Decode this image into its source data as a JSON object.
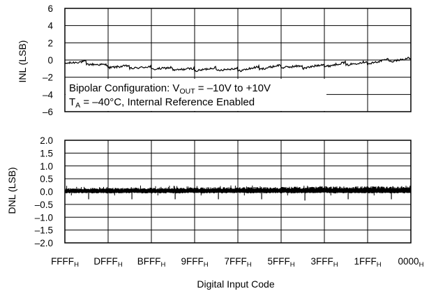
{
  "chart_data": [
    {
      "type": "line",
      "ylabel": "INL (LSB)",
      "ylim": [
        -6,
        6
      ],
      "y_ticks": [
        "6",
        "4",
        "2",
        "0",
        "–2",
        "–4",
        "–6"
      ],
      "x_categories": [
        "FFFF",
        "DFFF",
        "BFFF",
        "9FFF",
        "7FFF",
        "5FFF",
        "3FFF",
        "1FFF",
        "0000"
      ],
      "grid": true,
      "annotation": {
        "line1_pre": "Bipolar Configuration: V",
        "line1_sub": "OUT",
        "line1_post": " = –10V to +10V",
        "line2_pre": "T",
        "line2_sub": "A",
        "line2_post": " = –40°C, Internal Reference Enabled"
      },
      "series": [
        {
          "x": [
            "FFFF",
            "EFFF",
            "DFFF",
            "CFFF",
            "BFFF",
            "AFFF",
            "9FFF",
            "8FFF",
            "7FFF",
            "6FFF",
            "5FFF",
            "4FFF",
            "3FFF",
            "2FFF",
            "1FFF",
            "0FFF",
            "0000"
          ],
          "values": [
            -0.3,
            -0.4,
            -0.8,
            -0.9,
            -1.0,
            -1.1,
            -1.2,
            -1.1,
            -1.2,
            -1.0,
            -0.8,
            -0.9,
            -0.7,
            -0.5,
            -0.4,
            -0.1,
            0.0
          ]
        }
      ]
    },
    {
      "type": "line",
      "ylabel": "DNL (LSB)",
      "xlabel": "Digital Input Code",
      "ylim": [
        -2.0,
        2.0
      ],
      "y_ticks": [
        "2.0",
        "1.5",
        "1.0",
        "0.5",
        "0.0",
        "–0.5",
        "–1.0",
        "–1.5",
        "–2.0"
      ],
      "x_tick_labels": [
        "FFFF",
        "DFFF",
        "BFFF",
        "9FFF",
        "7FFF",
        "5FFF",
        "3FFF",
        "1FFF",
        "0000"
      ],
      "x_tick_subscript": "H",
      "grid": true,
      "band": {
        "low": -0.05,
        "high_start": 0.12,
        "high_end": 0.2
      },
      "spikes": [
        -0.3,
        -0.3,
        -0.3,
        -0.3,
        -0.3,
        -0.35,
        -0.3,
        -0.3
      ]
    }
  ]
}
